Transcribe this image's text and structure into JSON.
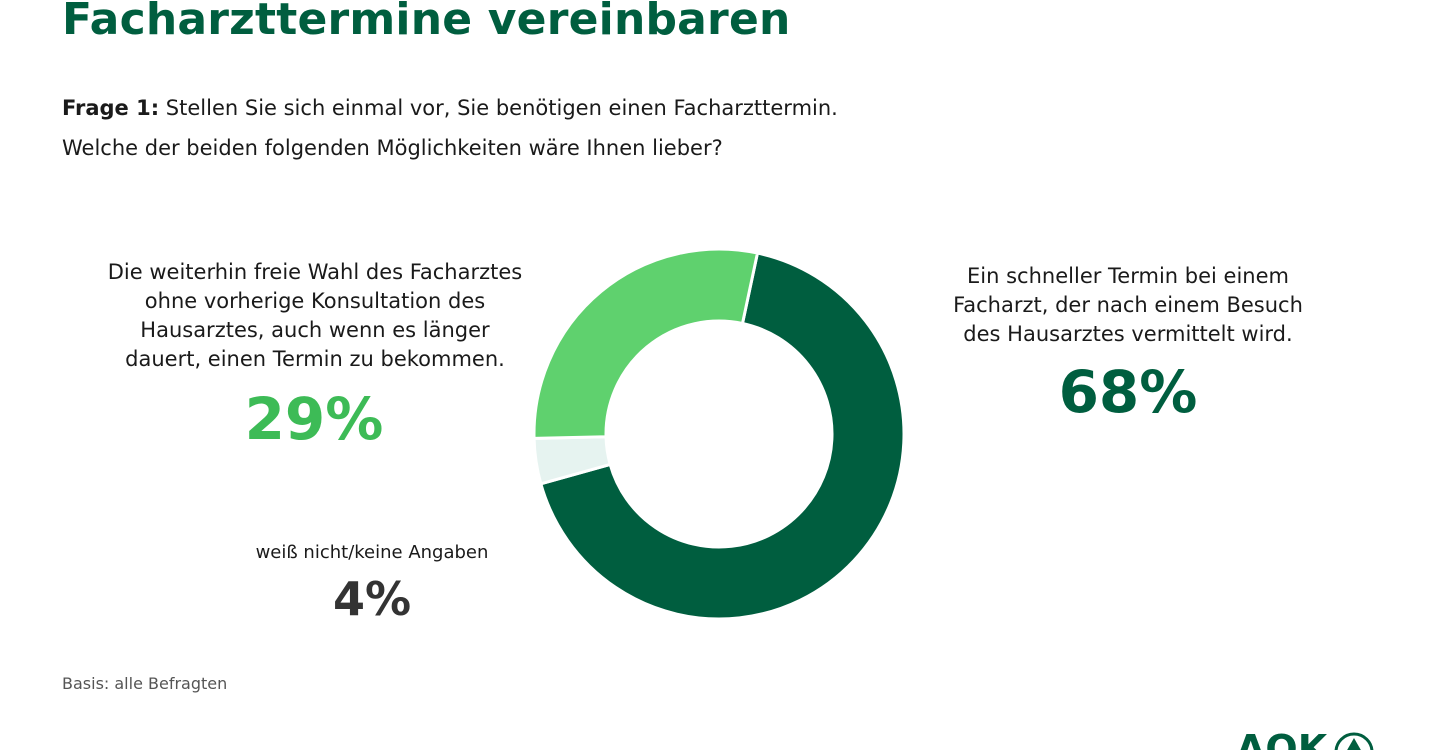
{
  "title": "Facharzttermine vereinbaren",
  "question": {
    "label": "Frage 1:",
    "line1_rest": " Stellen Sie sich einmal vor, Sie benötigen einen Facharzttermin.",
    "line2": "Welche der beiden folgenden Möglichkeiten wäre Ihnen lieber?"
  },
  "footer": {
    "basis": "Basis: alle Befragten"
  },
  "logo": {
    "text": "AOK"
  },
  "colors": {
    "dark_green": "#005e3f",
    "light_green": "#5fd16e",
    "pct_light_green": "#3dbb56",
    "pale": "#e6f3f0",
    "grey_text": "#333333"
  },
  "chart_data": {
    "type": "pie",
    "donut": true,
    "start_angle_deg": 12,
    "series": [
      {
        "name": "Ein schneller Termin bei einem Facharzt, der nach einem Besuch des Hausarztes vermittelt wird.",
        "value": 68,
        "label": "68%",
        "color": "#005e3f"
      },
      {
        "name": "weiß nicht/keine Angaben",
        "value": 4,
        "label": "4%",
        "color": "#e6f3f0"
      },
      {
        "name": "Die weiterhin freie Wahl des Facharztes ohne vorherige Konsultation des Hausarztes, auch wenn es länger dauert, einen Termin zu bekommen.",
        "value": 29,
        "label": "29%",
        "color": "#5fd16e"
      }
    ],
    "labels": {
      "left": {
        "lines": [
          "Die weiterhin freie Wahl des Facharztes",
          "ohne vorherige Konsultation des",
          "Hausarztes, auch wenn es länger",
          "dauert, einen Termin zu bekommen."
        ],
        "pct": "29%"
      },
      "right": {
        "lines": [
          "Ein schneller Termin bei einem",
          "Facharzt, der nach einem Besuch",
          "des Hausarztes vermittelt wird."
        ],
        "pct": "68%"
      },
      "small": {
        "lines": [
          "weiß nicht/keine Angaben"
        ],
        "pct": "4%"
      }
    }
  }
}
